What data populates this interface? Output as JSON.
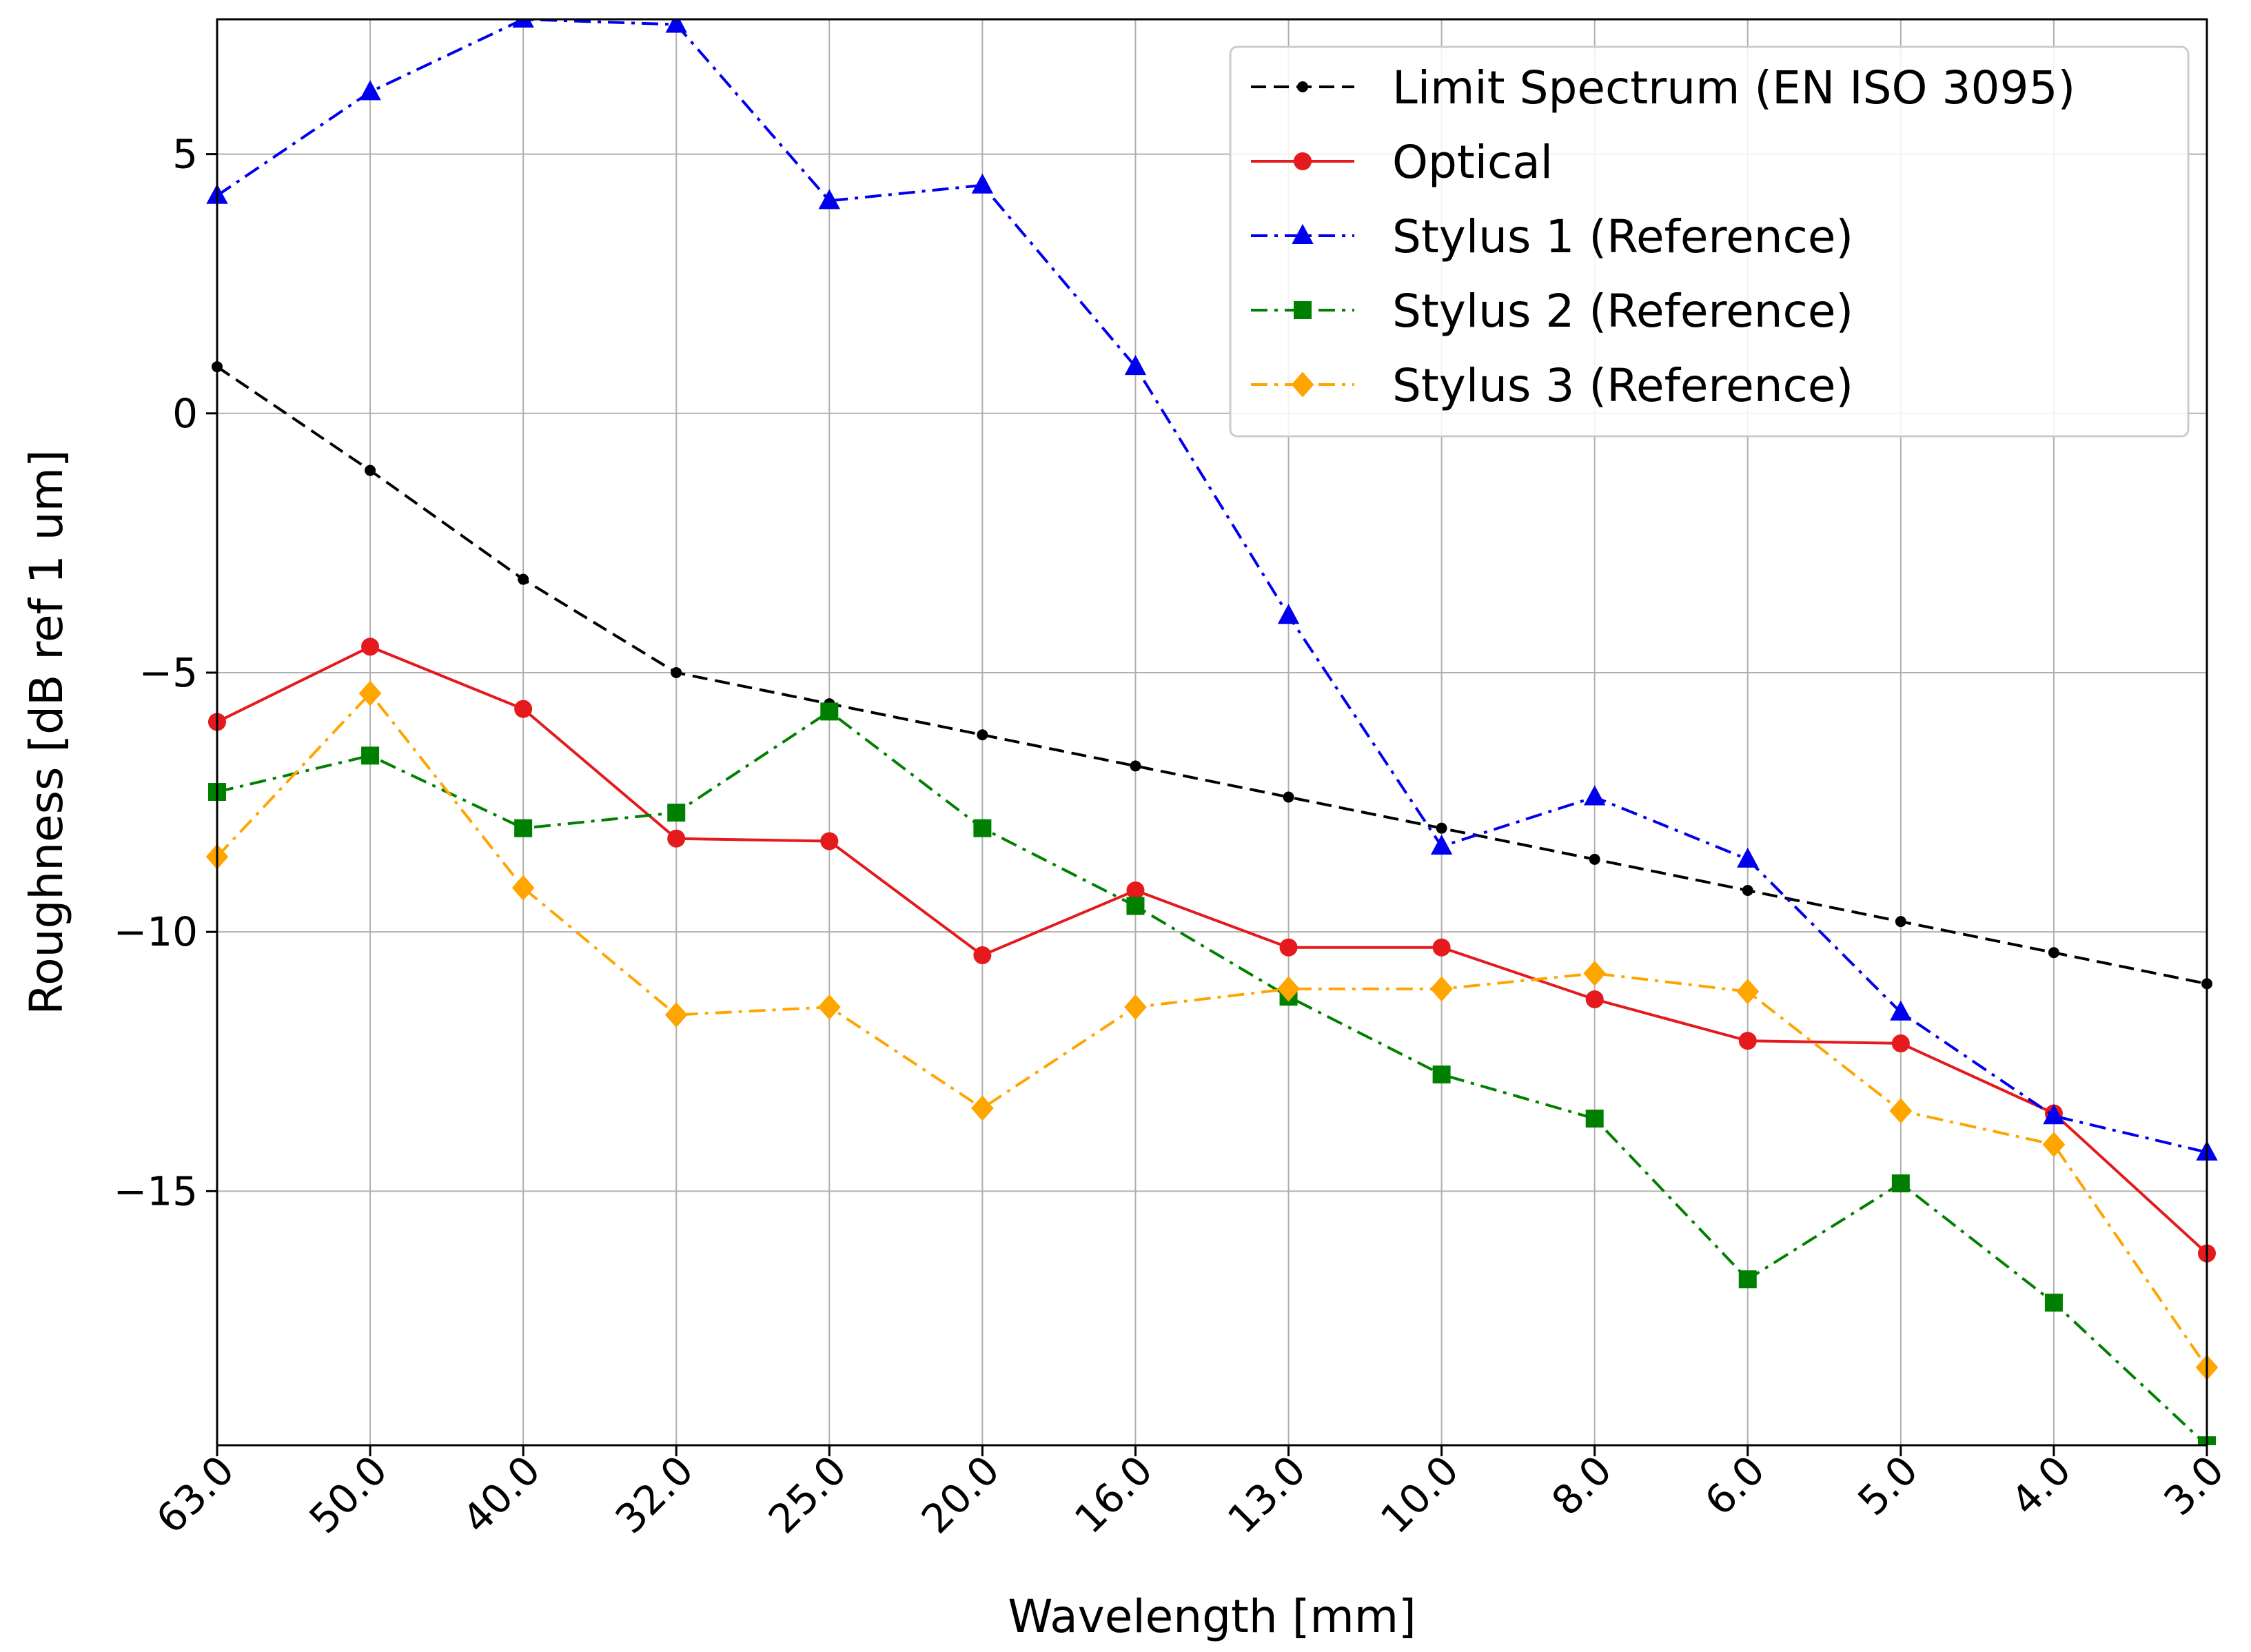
{
  "chart_data": {
    "type": "line",
    "title": "",
    "xlabel": "Wavelength [mm]",
    "ylabel": "Roughness [dB ref 1 um]",
    "categories": [
      "63.0",
      "50.0",
      "40.0",
      "32.0",
      "25.0",
      "20.0",
      "16.0",
      "13.0",
      "10.0",
      "8.0",
      "6.0",
      "5.0",
      "4.0",
      "3.0"
    ],
    "yticks": [
      5,
      0,
      -5,
      -10,
      -15
    ],
    "ytick_labels": [
      "5",
      "0",
      "−5",
      "−10",
      "−15"
    ],
    "ylim": [
      -19.9,
      7.6
    ],
    "grid": true,
    "legend_position": "top-right",
    "series": [
      {
        "name": "Limit Spectrum (EN ISO 3095)",
        "color": "#000000",
        "linestyle": "dashed",
        "marker": "point",
        "values": [
          0.9,
          -1.1,
          -3.2,
          -5.0,
          -5.6,
          -6.2,
          -6.8,
          -7.4,
          -8.0,
          -8.6,
          -9.2,
          -9.8,
          -10.4,
          -11.0
        ]
      },
      {
        "name": "Optical",
        "color": "#e41a1c",
        "linestyle": "solid",
        "marker": "circle",
        "values": [
          -5.95,
          -4.5,
          -5.7,
          -8.2,
          -8.25,
          -10.45,
          -9.2,
          -10.3,
          -10.3,
          -11.3,
          -12.1,
          -12.15,
          -13.5,
          -16.2
        ]
      },
      {
        "name": "Stylus 1 (Reference)",
        "color": "#0000ee",
        "linestyle": "dashdot",
        "marker": "triangle",
        "values": [
          4.2,
          6.2,
          7.6,
          7.5,
          4.1,
          4.4,
          0.9,
          -3.9,
          -8.35,
          -7.4,
          -8.6,
          -11.55,
          -13.55,
          -14.25
        ]
      },
      {
        "name": "Stylus 2 (Reference)",
        "color": "#008000",
        "linestyle": "dashdot",
        "marker": "square",
        "values": [
          -7.3,
          -6.6,
          -8.0,
          -7.7,
          -5.75,
          -8.0,
          -9.5,
          -11.25,
          -12.75,
          -13.6,
          -16.7,
          -14.85,
          -17.15,
          -19.9
        ]
      },
      {
        "name": "Stylus 3 (Reference)",
        "color": "#ffa500",
        "linestyle": "dashdot",
        "marker": "diamond",
        "values": [
          -8.55,
          -5.4,
          -9.15,
          -11.6,
          -11.45,
          -13.4,
          -11.45,
          -11.1,
          -11.1,
          -10.8,
          -11.15,
          -13.45,
          -14.1,
          -18.4
        ]
      }
    ]
  }
}
